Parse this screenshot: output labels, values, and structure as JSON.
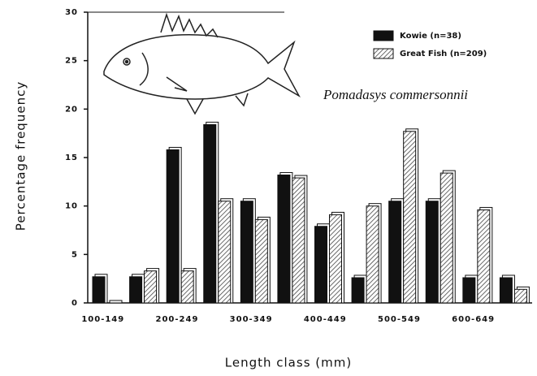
{
  "chart_data": {
    "type": "bar",
    "annotation": "Pomadasys commersonnii",
    "xlabel": "Length class (mm)",
    "ylabel": "Percentage frequency",
    "categories": [
      "100-149",
      null,
      "200-249",
      null,
      "300-349",
      null,
      "400-449",
      null,
      "500-549",
      null,
      "600-649",
      null
    ],
    "series": [
      {
        "name": "Kowie (n=38)",
        "color": "#111111",
        "values": [
          2.7,
          2.7,
          15.8,
          18.4,
          10.5,
          13.2,
          7.9,
          2.6,
          10.5,
          10.5,
          2.6,
          2.6
        ]
      },
      {
        "name": "Great Fish (n=209)",
        "color": "hatched",
        "values": [
          0,
          3.3,
          3.3,
          10.5,
          8.6,
          12.9,
          9.1,
          10.0,
          17.7,
          13.4,
          9.6,
          1.4
        ]
      }
    ],
    "ylim": [
      0,
      30
    ],
    "yticks": [
      0,
      5,
      10,
      15,
      20,
      25,
      30
    ],
    "legend": "upper right"
  }
}
